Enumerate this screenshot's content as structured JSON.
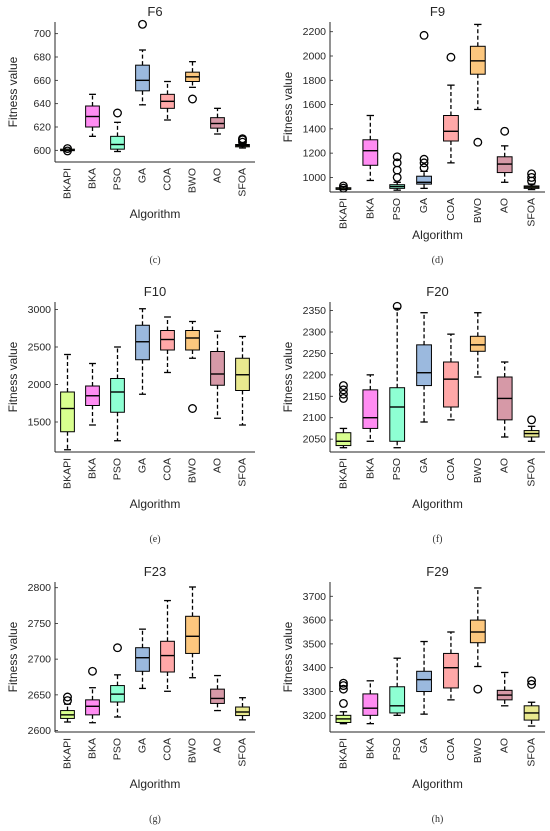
{
  "colors": [
    "#d9ff8f",
    "#ff8cf2",
    "#8effd3",
    "#9bb9de",
    "#ffa8a8",
    "#fcc77e",
    "#d699a7",
    "#e9e98f"
  ],
  "chart_data": [
    {
      "type": "box",
      "title": "F6",
      "xlabel": "Algorithm",
      "ylabel": "Fitness value",
      "caption": "(c)",
      "categories": [
        "BKAPI",
        "BKA",
        "PSO",
        "GA",
        "COA",
        "BWO",
        "AO",
        "SFOA"
      ],
      "ylim": [
        590,
        710
      ],
      "yticks": [
        600,
        620,
        640,
        660,
        680,
        700
      ],
      "boxes": [
        {
          "min": 600,
          "q1": 600,
          "median": 600,
          "q3": 601,
          "max": 601,
          "outliers": [
            599.5,
            601.5
          ]
        },
        {
          "min": 612,
          "q1": 620,
          "median": 629,
          "q3": 638,
          "max": 648,
          "outliers": []
        },
        {
          "min": 599,
          "q1": 601,
          "median": 605,
          "q3": 612,
          "max": 624,
          "outliers": [
            632
          ]
        },
        {
          "min": 639,
          "q1": 651,
          "median": 660,
          "q3": 673,
          "max": 686,
          "outliers": [
            708
          ]
        },
        {
          "min": 626,
          "q1": 636,
          "median": 642,
          "q3": 648,
          "max": 659,
          "outliers": []
        },
        {
          "min": 654,
          "q1": 659,
          "median": 663,
          "q3": 667,
          "max": 676,
          "outliers": [
            644
          ]
        },
        {
          "min": 614,
          "q1": 619,
          "median": 623,
          "q3": 628,
          "max": 636,
          "outliers": []
        },
        {
          "min": 602,
          "q1": 603,
          "median": 604,
          "q3": 605,
          "max": 606,
          "outliers": [
            607,
            609,
            610
          ]
        }
      ]
    },
    {
      "type": "box",
      "title": "F9",
      "xlabel": "Algorithm",
      "ylabel": "Fitness value",
      "caption": "(d)",
      "categories": [
        "BKAPI",
        "BKA",
        "PSO",
        "GA",
        "COA",
        "BWO",
        "AO",
        "SFOA"
      ],
      "ylim": [
        880,
        2280
      ],
      "yticks": [
        1000,
        1200,
        1400,
        1600,
        1800,
        2000,
        2200
      ],
      "boxes": [
        {
          "min": 900,
          "q1": 902,
          "median": 905,
          "q3": 915,
          "max": 925,
          "outliers": [
            930,
            912
          ]
        },
        {
          "min": 975,
          "q1": 1100,
          "median": 1220,
          "q3": 1310,
          "max": 1510,
          "outliers": []
        },
        {
          "min": 895,
          "q1": 910,
          "median": 925,
          "q3": 940,
          "max": 960,
          "outliers": [
            1000,
            1060,
            1120,
            1170
          ]
        },
        {
          "min": 910,
          "q1": 945,
          "median": 960,
          "q3": 1010,
          "max": 1050,
          "outliers": [
            1080,
            1120,
            1150,
            2170
          ]
        },
        {
          "min": 1120,
          "q1": 1300,
          "median": 1380,
          "q3": 1510,
          "max": 1760,
          "outliers": [
            1990
          ]
        },
        {
          "min": 1560,
          "q1": 1850,
          "median": 1960,
          "q3": 2080,
          "max": 2260,
          "outliers": [
            1290
          ]
        },
        {
          "min": 960,
          "q1": 1040,
          "median": 1110,
          "q3": 1170,
          "max": 1260,
          "outliers": [
            1380
          ]
        },
        {
          "min": 900,
          "q1": 910,
          "median": 920,
          "q3": 930,
          "max": 945,
          "outliers": [
            970,
            1000,
            1030
          ]
        }
      ]
    },
    {
      "type": "box",
      "title": "F10",
      "xlabel": "Algorithm",
      "ylabel": "Fitness value",
      "caption": "(e)",
      "categories": [
        "BKAPI",
        "BKA",
        "PSO",
        "GA",
        "COA",
        "BWO",
        "AO",
        "SFOA"
      ],
      "ylim": [
        1100,
        3100
      ],
      "yticks": [
        1500,
        2000,
        2500,
        3000
      ],
      "boxes": [
        {
          "min": 1130,
          "q1": 1370,
          "median": 1680,
          "q3": 1900,
          "max": 2400,
          "outliers": []
        },
        {
          "min": 1460,
          "q1": 1720,
          "median": 1850,
          "q3": 1980,
          "max": 2280,
          "outliers": []
        },
        {
          "min": 1250,
          "q1": 1630,
          "median": 1900,
          "q3": 2080,
          "max": 2500,
          "outliers": []
        },
        {
          "min": 1870,
          "q1": 2330,
          "median": 2570,
          "q3": 2790,
          "max": 3010,
          "outliers": []
        },
        {
          "min": 2160,
          "q1": 2460,
          "median": 2600,
          "q3": 2720,
          "max": 2900,
          "outliers": []
        },
        {
          "min": 2350,
          "q1": 2460,
          "median": 2620,
          "q3": 2720,
          "max": 2840,
          "outliers": [
            1680
          ]
        },
        {
          "min": 1550,
          "q1": 1990,
          "median": 2140,
          "q3": 2440,
          "max": 2710,
          "outliers": []
        },
        {
          "min": 1460,
          "q1": 1920,
          "median": 2130,
          "q3": 2350,
          "max": 2640,
          "outliers": []
        }
      ]
    },
    {
      "type": "box",
      "title": "F20",
      "xlabel": "Algorithm",
      "ylabel": "Fitness value",
      "caption": "(f)",
      "categories": [
        "BKAPI",
        "BKA",
        "PSO",
        "GA",
        "COA",
        "BWO",
        "AO",
        "SFOA"
      ],
      "ylim": [
        2020,
        2370
      ],
      "yticks": [
        2050,
        2100,
        2150,
        2200,
        2250,
        2300,
        2350
      ],
      "boxes": [
        {
          "min": 2030,
          "q1": 2035,
          "median": 2045,
          "q3": 2065,
          "max": 2075,
          "outliers": [
            2145,
            2155,
            2165,
            2175
          ]
        },
        {
          "min": 2045,
          "q1": 2075,
          "median": 2100,
          "q3": 2165,
          "max": 2200,
          "outliers": []
        },
        {
          "min": 2030,
          "q1": 2045,
          "median": 2125,
          "q3": 2170,
          "max": 2355,
          "outliers": [
            2360
          ]
        },
        {
          "min": 2090,
          "q1": 2175,
          "median": 2205,
          "q3": 2270,
          "max": 2345,
          "outliers": []
        },
        {
          "min": 2095,
          "q1": 2125,
          "median": 2190,
          "q3": 2230,
          "max": 2295,
          "outliers": []
        },
        {
          "min": 2195,
          "q1": 2255,
          "median": 2270,
          "q3": 2290,
          "max": 2345,
          "outliers": []
        },
        {
          "min": 2055,
          "q1": 2095,
          "median": 2145,
          "q3": 2195,
          "max": 2230,
          "outliers": []
        },
        {
          "min": 2045,
          "q1": 2055,
          "median": 2063,
          "q3": 2070,
          "max": 2080,
          "outliers": [
            2095
          ]
        }
      ]
    },
    {
      "type": "box",
      "title": "F23",
      "xlabel": "Algorithm",
      "ylabel": "Fitness value",
      "caption": "(g)",
      "categories": [
        "BKAPI",
        "BKA",
        "PSO",
        "GA",
        "COA",
        "BWO",
        "AO",
        "SFOA"
      ],
      "ylim": [
        2598,
        2808
      ],
      "yticks": [
        2600,
        2650,
        2700,
        2750,
        2800
      ],
      "boxes": [
        {
          "min": 2612,
          "q1": 2617,
          "median": 2622,
          "q3": 2628,
          "max": 2637,
          "outliers": [
            2642,
            2647
          ]
        },
        {
          "min": 2611,
          "q1": 2622,
          "median": 2634,
          "q3": 2643,
          "max": 2660,
          "outliers": [
            2683
          ]
        },
        {
          "min": 2619,
          "q1": 2640,
          "median": 2651,
          "q3": 2663,
          "max": 2678,
          "outliers": [
            2716
          ]
        },
        {
          "min": 2659,
          "q1": 2683,
          "median": 2702,
          "q3": 2716,
          "max": 2742,
          "outliers": []
        },
        {
          "min": 2655,
          "q1": 2682,
          "median": 2705,
          "q3": 2725,
          "max": 2782,
          "outliers": []
        },
        {
          "min": 2674,
          "q1": 2708,
          "median": 2732,
          "q3": 2760,
          "max": 2801,
          "outliers": []
        },
        {
          "min": 2628,
          "q1": 2638,
          "median": 2645,
          "q3": 2658,
          "max": 2677,
          "outliers": []
        },
        {
          "min": 2615,
          "q1": 2621,
          "median": 2626,
          "q3": 2633,
          "max": 2646,
          "outliers": []
        }
      ]
    },
    {
      "type": "box",
      "title": "F29",
      "xlabel": "Algorithm",
      "ylabel": "Fitness value",
      "caption": "(h)",
      "categories": [
        "BKAPI",
        "BKA",
        "PSO",
        "GA",
        "COA",
        "BWO",
        "AO",
        "SFOA"
      ],
      "ylim": [
        3130,
        3760
      ],
      "yticks": [
        3200,
        3300,
        3400,
        3500,
        3600,
        3700
      ],
      "boxes": [
        {
          "min": 3165,
          "q1": 3170,
          "median": 3185,
          "q3": 3200,
          "max": 3215,
          "outliers": [
            3250,
            3310,
            3325,
            3335
          ]
        },
        {
          "min": 3165,
          "q1": 3200,
          "median": 3230,
          "q3": 3290,
          "max": 3345,
          "outliers": []
        },
        {
          "min": 3200,
          "q1": 3210,
          "median": 3240,
          "q3": 3320,
          "max": 3440,
          "outliers": []
        },
        {
          "min": 3205,
          "q1": 3300,
          "median": 3350,
          "q3": 3385,
          "max": 3510,
          "outliers": []
        },
        {
          "min": 3265,
          "q1": 3315,
          "median": 3400,
          "q3": 3460,
          "max": 3550,
          "outliers": []
        },
        {
          "min": 3405,
          "q1": 3505,
          "median": 3550,
          "q3": 3600,
          "max": 3735,
          "outliers": [
            3310
          ]
        },
        {
          "min": 3240,
          "q1": 3265,
          "median": 3285,
          "q3": 3305,
          "max": 3380,
          "outliers": []
        },
        {
          "min": 3155,
          "q1": 3180,
          "median": 3210,
          "q3": 3240,
          "max": 3255,
          "outliers": [
            3330,
            3345
          ]
        }
      ]
    }
  ]
}
